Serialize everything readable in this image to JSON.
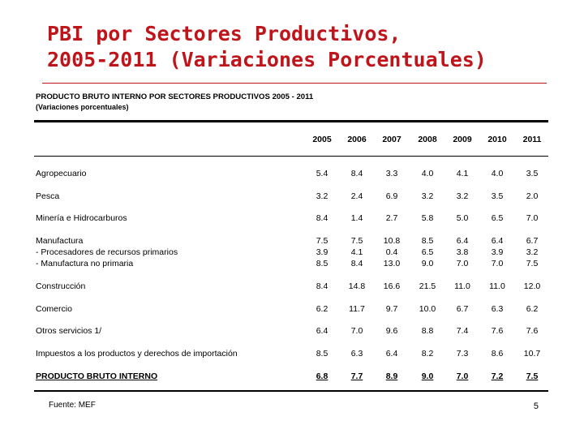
{
  "slide": {
    "title_line1": "PBI por Sectores Productivos,",
    "title_line2": "2005-2011 (Variaciones Porcentuales)",
    "source": "Fuente: MEF",
    "page_number": "5"
  },
  "table": {
    "heading": "PRODUCTO BRUTO INTERNO POR SECTORES PRODUCTIVOS 2005 - 2011",
    "subheading": "(Variaciones porcentuales)",
    "years": [
      "2005",
      "2006",
      "2007",
      "2008",
      "2009",
      "2010",
      "2011"
    ],
    "rows": [
      {
        "label": "Agropecuario",
        "values": [
          "5.4",
          "8.4",
          "3.3",
          "4.0",
          "4.1",
          "4.0",
          "3.5"
        ]
      },
      {
        "label": "Pesca",
        "values": [
          "3.2",
          "2.4",
          "6.9",
          "3.2",
          "3.2",
          "3.5",
          "2.0"
        ]
      },
      {
        "label": "Minería e Hidrocarburos",
        "values": [
          "8.4",
          "1.4",
          "2.7",
          "5.8",
          "5.0",
          "6.5",
          "7.0"
        ]
      },
      {
        "label": "Manufactura",
        "values": [
          "7.5",
          "7.5",
          "10.8",
          "8.5",
          "6.4",
          "6.4",
          "6.7"
        ]
      },
      {
        "label": "- Procesadores de recursos primarios",
        "values": [
          "3.9",
          "4.1",
          "0.4",
          "6.5",
          "3.8",
          "3.9",
          "3.2"
        ]
      },
      {
        "label": "- Manufactura no primaria",
        "values": [
          "8.5",
          "8.4",
          "13.0",
          "9.0",
          "7.0",
          "7.0",
          "7.5"
        ]
      },
      {
        "label": "Construcción",
        "values": [
          "8.4",
          "14.8",
          "16.6",
          "21.5",
          "11.0",
          "11.0",
          "12.0"
        ]
      },
      {
        "label": "Comercio",
        "values": [
          "6.2",
          "11.7",
          "9.7",
          "10.0",
          "6.7",
          "6.3",
          "6.2"
        ]
      },
      {
        "label": "Otros servicios 1/",
        "values": [
          "6.4",
          "7.0",
          "9.6",
          "8.8",
          "7.4",
          "7.6",
          "7.6"
        ]
      },
      {
        "label": "Impuestos a los productos y derechos de importación",
        "values": [
          "8.5",
          "6.3",
          "6.4",
          "8.2",
          "7.3",
          "8.6",
          "10.7"
        ]
      },
      {
        "label": "PRODUCTO BRUTO INTERNO",
        "values": [
          "6.8",
          "7.7",
          "8.9",
          "9.0",
          "7.0",
          "7.2",
          "7.5"
        ]
      }
    ]
  },
  "colors": {
    "title": "#c0141b",
    "text": "#000000",
    "background": "#ffffff"
  }
}
